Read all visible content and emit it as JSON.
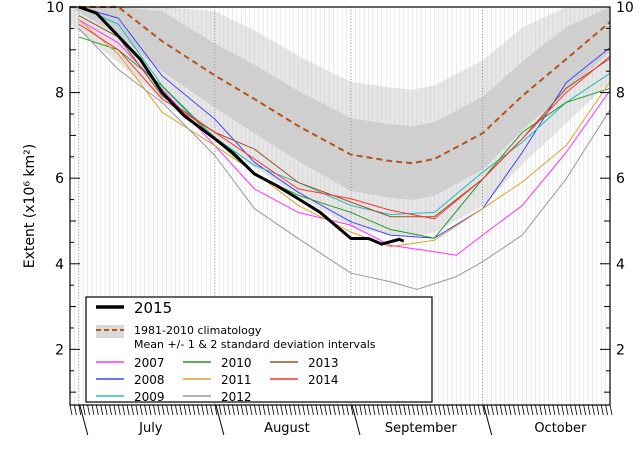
{
  "chart_data": {
    "type": "line",
    "title": "",
    "xlabel": "",
    "ylabel": "Extent (x10⁶ km²)",
    "xlim": [
      "06-29",
      "10-30"
    ],
    "ylim": [
      0.7,
      10
    ],
    "yticks": [
      2,
      4,
      6,
      8,
      10
    ],
    "months": [
      {
        "label": "July",
        "start": "07-01"
      },
      {
        "label": "August",
        "start": "08-01"
      },
      {
        "label": "September",
        "start": "09-01"
      },
      {
        "label": "October",
        "start": "10-01"
      }
    ],
    "grid": "daily vertical lines, dotted month boundaries",
    "legend_position": "bottom-left",
    "climatology": {
      "name": "1981-2010 climatology",
      "band_label": "Mean +/- 1 & 2 standard deviation intervals",
      "color": "#b5531a",
      "x": [
        "06-29",
        "07-10",
        "07-20",
        "08-01",
        "08-10",
        "08-20",
        "09-01",
        "09-10",
        "09-15",
        "09-20",
        "10-01",
        "10-10",
        "10-20",
        "10-30"
      ],
      "mean": [
        10.8,
        10.0,
        9.2,
        8.4,
        7.85,
        7.22,
        6.55,
        6.4,
        6.35,
        6.45,
        7.05,
        7.92,
        8.78,
        9.65
      ],
      "sd": [
        0.6,
        0.65,
        0.7,
        0.75,
        0.8,
        0.82,
        0.85,
        0.86,
        0.86,
        0.86,
        0.85,
        0.8,
        0.75,
        0.7
      ]
    },
    "series": [
      {
        "name": "2007",
        "color": "#ff33ff",
        "x": [
          "07-01",
          "07-10",
          "07-20",
          "08-01",
          "08-10",
          "08-20",
          "09-01",
          "09-10",
          "09-20",
          "09-25",
          "10-01",
          "10-10",
          "10-20",
          "10-30"
        ],
        "values": [
          9.7,
          9.16,
          8.08,
          6.76,
          5.75,
          5.2,
          4.9,
          4.43,
          4.28,
          4.2,
          4.67,
          5.36,
          6.6,
          8.05
        ]
      },
      {
        "name": "2008",
        "color": "#4444ff",
        "x": [
          "07-01",
          "07-10",
          "07-20",
          "08-01",
          "08-10",
          "08-20",
          "09-01",
          "09-10",
          "09-20",
          "10-01",
          "10-10",
          "10-20",
          "10-30"
        ],
        "values": [
          10.1,
          9.74,
          8.39,
          7.38,
          6.37,
          5.67,
          4.98,
          4.67,
          4.6,
          5.29,
          6.6,
          8.23,
          9.05
        ]
      },
      {
        "name": "2009",
        "color": "#22bbbb",
        "x": [
          "07-01",
          "07-10",
          "07-20",
          "08-01",
          "08-10",
          "08-20",
          "09-01",
          "09-10",
          "09-20",
          "10-01",
          "10-10",
          "10-20",
          "10-30"
        ],
        "values": [
          10.0,
          9.6,
          8.16,
          6.95,
          6.3,
          5.9,
          5.36,
          5.15,
          5.2,
          6.14,
          6.84,
          7.77,
          8.45
        ]
      },
      {
        "name": "2010",
        "color": "#229922",
        "x": [
          "07-01",
          "07-10",
          "07-20",
          "08-01",
          "08-10",
          "08-20",
          "09-01",
          "09-10",
          "09-20",
          "10-01",
          "10-10",
          "10-20",
          "10-30"
        ],
        "values": [
          9.3,
          9.0,
          8.15,
          6.9,
          6.1,
          5.6,
          5.2,
          4.8,
          4.6,
          5.98,
          7.07,
          7.77,
          8.1
        ]
      },
      {
        "name": "2011",
        "color": "#e0a030",
        "x": [
          "07-01",
          "07-10",
          "07-20",
          "08-01",
          "08-10",
          "08-20",
          "09-01",
          "09-10",
          "09-20",
          "10-01",
          "10-10",
          "10-20",
          "10-30"
        ],
        "values": [
          9.7,
          8.9,
          7.54,
          6.76,
          6.14,
          5.36,
          4.74,
          4.4,
          4.55,
          5.29,
          5.91,
          6.76,
          8.25
        ]
      },
      {
        "name": "2012",
        "color": "#999999",
        "x": [
          "07-01",
          "07-10",
          "07-20",
          "08-01",
          "08-10",
          "08-20",
          "09-01",
          "09-10",
          "09-16",
          "09-25",
          "10-01",
          "10-10",
          "10-20",
          "10-30"
        ],
        "values": [
          9.5,
          8.54,
          7.77,
          6.53,
          5.29,
          4.59,
          3.78,
          3.58,
          3.4,
          3.7,
          4.05,
          4.67,
          5.98,
          7.6
        ]
      },
      {
        "name": "2013",
        "color": "#995522",
        "x": [
          "07-01",
          "07-10",
          "07-20",
          "08-01",
          "08-10",
          "08-20",
          "09-01",
          "09-10",
          "09-20",
          "10-01",
          "10-10",
          "10-20",
          "10-30"
        ],
        "values": [
          9.8,
          9.3,
          7.92,
          7.07,
          6.68,
          5.9,
          5.44,
          5.1,
          5.1,
          5.98,
          6.92,
          8.1,
          8.8
        ]
      },
      {
        "name": "2014",
        "color": "#ff3333",
        "x": [
          "07-01",
          "07-10",
          "07-20",
          "08-01",
          "08-10",
          "08-20",
          "09-01",
          "09-10",
          "09-20",
          "10-01",
          "10-10",
          "10-20",
          "10-30"
        ],
        "values": [
          9.6,
          9.0,
          7.85,
          7.07,
          6.45,
          5.75,
          5.52,
          5.25,
          5.05,
          5.98,
          6.92,
          8.0,
          8.85
        ]
      },
      {
        "name": "2015",
        "color": "#000000",
        "x": [
          "07-01",
          "07-05",
          "07-10",
          "07-15",
          "07-20",
          "07-25",
          "08-01",
          "08-05",
          "08-10",
          "08-15",
          "08-20",
          "08-25",
          "09-01",
          "09-05",
          "09-08",
          "09-12",
          "09-13"
        ],
        "values": [
          10.0,
          9.86,
          9.32,
          8.78,
          8.0,
          7.46,
          6.92,
          6.6,
          6.1,
          5.83,
          5.52,
          5.2,
          4.59,
          4.59,
          4.46,
          4.57,
          4.53
        ]
      }
    ]
  }
}
